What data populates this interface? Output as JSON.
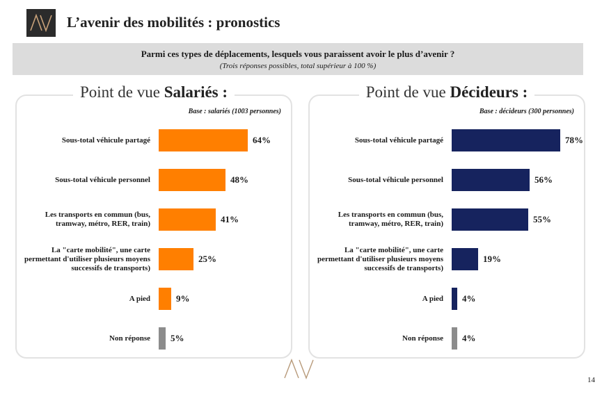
{
  "header": {
    "title": "L’avenir des mobilités : pronostics"
  },
  "question": {
    "text": "Parmi ces types de déplacements, lesquels vous paraissent avoir le plus d’avenir ?",
    "subtext": "(Trois réponses possibles, total supérieur à 100 %)"
  },
  "page_number": "14",
  "colors": {
    "salaries": "#ff7f00",
    "decideurs": "#16235e",
    "non_reponse": "#8c8c8c"
  },
  "chart_data": [
    {
      "type": "bar",
      "orientation": "horizontal",
      "title_prefix": "Point de vue ",
      "title_bold": "Salariés :",
      "base": "Base : salariés (1003 personnes)",
      "categories": [
        "Sous-total véhicule partagé",
        "Sous-total véhicule personnel",
        "Les transports en  commun (bus, tramway, métro, RER, train)",
        "La \"carte mobilité\", une carte permettant d'utiliser plusieurs moyens successifs de transports)",
        "A pied",
        "Non réponse"
      ],
      "values": [
        64,
        48,
        41,
        25,
        9,
        5
      ],
      "labels": [
        "64%",
        "48%",
        "41%",
        "25%",
        "9%",
        "5%"
      ],
      "unit": "%",
      "xlim": [
        0,
        100
      ]
    },
    {
      "type": "bar",
      "orientation": "horizontal",
      "title_prefix": "Point de vue ",
      "title_bold": "Décideurs :",
      "base": "Base : décideurs (300 personnes)",
      "categories": [
        "Sous-total véhicule partagé",
        "Sous-total véhicule personnel",
        "Les transports en  commun (bus, tramway, métro, RER, train)",
        "La \"carte mobilité\", une carte permettant d'utiliser plusieurs moyens successifs de transports)",
        "A pied",
        "Non réponse"
      ],
      "values": [
        78,
        56,
        55,
        19,
        4,
        4
      ],
      "labels": [
        "78%",
        "56%",
        "55%",
        "19%",
        "4%",
        "4%"
      ],
      "unit": "%",
      "xlim": [
        0,
        100
      ]
    }
  ]
}
